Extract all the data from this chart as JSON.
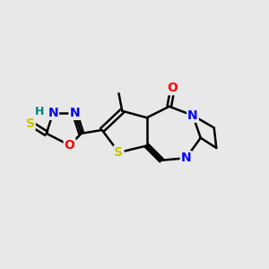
{
  "background_color": "#e8e8e8",
  "bond_color": "#000000",
  "bond_width": 1.8,
  "atom_colors": {
    "S": "#c8c800",
    "O": "#ff0000",
    "N": "#0000ff",
    "H": "#008080",
    "C": "#000000"
  },
  "font_size": 10,
  "fig_width": 3.0,
  "fig_height": 3.0,
  "xlim": [
    0,
    12
  ],
  "ylim": [
    0,
    12
  ]
}
